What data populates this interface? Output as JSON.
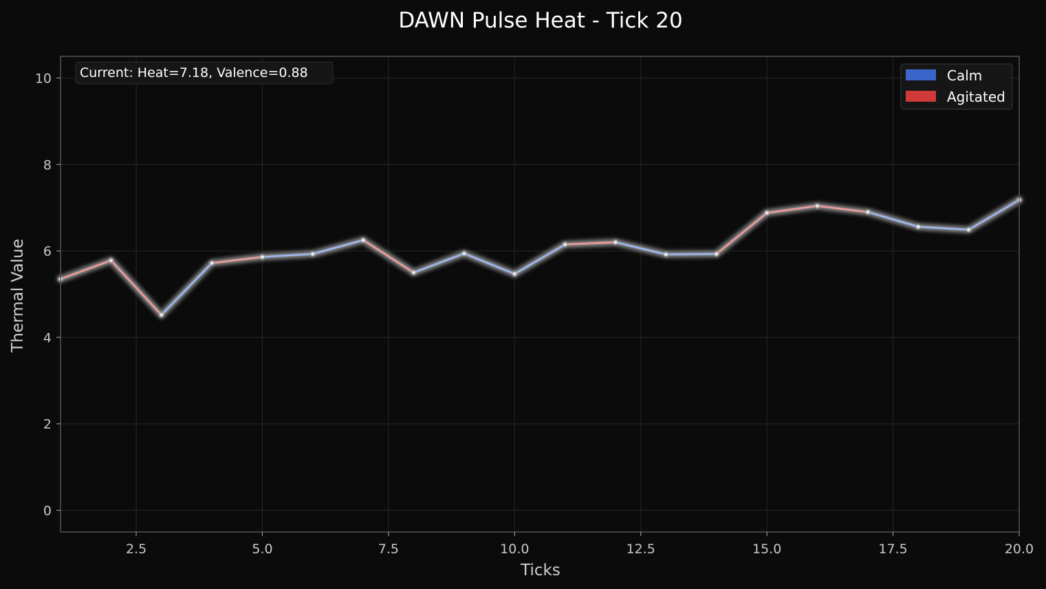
{
  "chart_data": {
    "type": "line",
    "title": "DAWN Pulse Heat - Tick 20",
    "xlabel": "Ticks",
    "ylabel": "Thermal Value",
    "xlim": [
      1,
      20
    ],
    "ylim": [
      -0.5,
      10.5
    ],
    "xticks": [
      "2.5",
      "5.0",
      "7.5",
      "10.0",
      "12.5",
      "15.0",
      "17.5",
      "20.0"
    ],
    "yticks": [
      "0",
      "2",
      "4",
      "6",
      "8",
      "10"
    ],
    "grid": true,
    "legend_position": "top-right",
    "annotation": "Current: Heat=7.18, Valence=0.88",
    "x": [
      1,
      2,
      3,
      4,
      5,
      6,
      7,
      8,
      9,
      10,
      11,
      12,
      13,
      14,
      15,
      16,
      17,
      18,
      19,
      20
    ],
    "series": [
      {
        "name": "Heat",
        "values": [
          5.35,
          5.78,
          4.52,
          5.72,
          5.86,
          5.93,
          6.25,
          5.5,
          5.94,
          5.47,
          6.15,
          6.2,
          5.92,
          5.93,
          6.88,
          7.04,
          6.9,
          6.56,
          6.49,
          7.18
        ]
      }
    ],
    "segment_states": [
      "Agitated",
      "Agitated",
      "Calm",
      "Agitated",
      "Calm",
      "Calm",
      "Agitated",
      "Calm",
      "Calm",
      "Calm",
      "Agitated",
      "Calm",
      "Calm",
      "Agitated",
      "Agitated",
      "Agitated",
      "Calm",
      "Calm",
      "Calm"
    ],
    "legend": [
      {
        "label": "Calm",
        "color": "#3a66cc"
      },
      {
        "label": "Agitated",
        "color": "#d03a3a"
      }
    ],
    "colors": {
      "background": "#0b0b0b",
      "plot_background": "#0b0b0b",
      "grid": "#262626",
      "frame": "#555555",
      "calm_line": "#9cb5e6",
      "agitated_line": "#e49a9a",
      "glow": "#bcbcbc"
    }
  }
}
